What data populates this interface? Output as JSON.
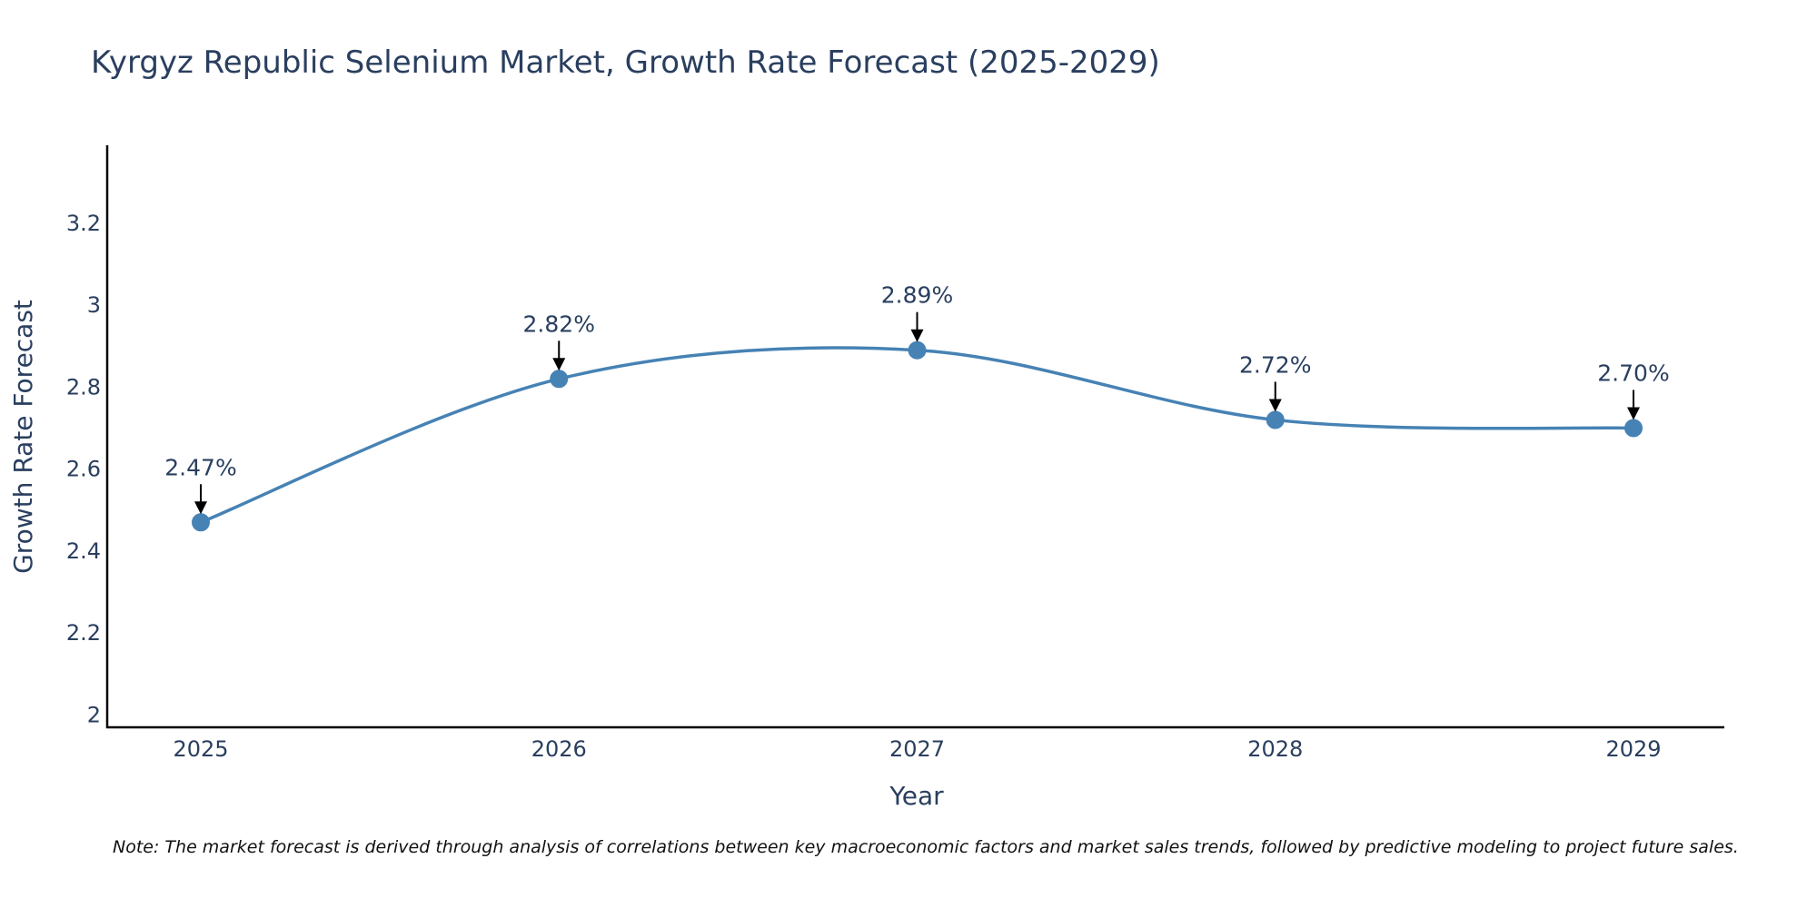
{
  "chart_data": {
    "type": "line",
    "title": "Kyrgyz Republic Selenium Market, Growth Rate Forecast (2025-2029)",
    "xlabel": "Year",
    "ylabel": "Growth Rate Forecast",
    "categories": [
      "2025",
      "2026",
      "2027",
      "2028",
      "2029"
    ],
    "series": [
      {
        "name": "Growth Rate Forecast",
        "values": [
          2.47,
          2.82,
          2.89,
          2.72,
          2.7
        ],
        "labels": [
          "2.47%",
          "2.82%",
          "2.89%",
          "2.72%",
          "2.70%"
        ],
        "color": "#4682b4"
      }
    ],
    "y_ticks": [
      "2",
      "2.2",
      "2.4",
      "2.6",
      "2.8",
      "3",
      "3.2"
    ],
    "ylim": [
      1.97,
      3.39
    ],
    "grid": false,
    "legend": "none",
    "line_shape": "spline",
    "annotation_arrows": true,
    "axis_color": "#000000",
    "note": "Note: The market forecast is derived through analysis of correlations between key macroeconomic factors and market sales trends, followed by predictive modeling to project future sales."
  }
}
